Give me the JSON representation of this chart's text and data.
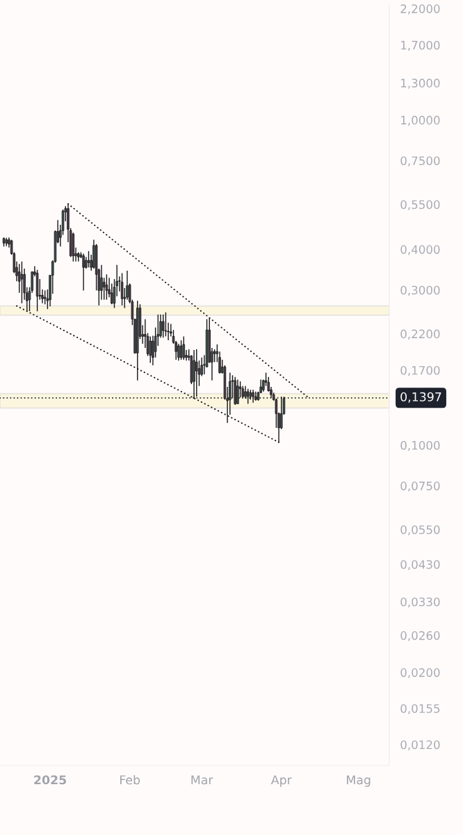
{
  "chart_data": {
    "type": "candlestick",
    "x": [
      "2024-12-14",
      "2024-12-15",
      "2024-12-16",
      "2024-12-17",
      "2024-12-18",
      "2024-12-19",
      "2024-12-20",
      "2024-12-21",
      "2024-12-22",
      "2024-12-23",
      "2024-12-24",
      "2024-12-25",
      "2024-12-26",
      "2024-12-27",
      "2024-12-28",
      "2024-12-29",
      "2024-12-30",
      "2024-12-31",
      "2025-01-01",
      "2025-01-02",
      "2025-01-03",
      "2025-01-04",
      "2025-01-05",
      "2025-01-06",
      "2025-01-07",
      "2025-01-08",
      "2025-01-09",
      "2025-01-10",
      "2025-01-11",
      "2025-01-12",
      "2025-01-13",
      "2025-01-14",
      "2025-01-15",
      "2025-01-16",
      "2025-01-17",
      "2025-01-18",
      "2025-01-19",
      "2025-01-20",
      "2025-01-21",
      "2025-01-22",
      "2025-01-23",
      "2025-01-24",
      "2025-01-25",
      "2025-01-26",
      "2025-01-27",
      "2025-01-28",
      "2025-01-29",
      "2025-01-30",
      "2025-01-31",
      "2025-02-01",
      "2025-02-02",
      "2025-02-03",
      "2025-02-04",
      "2025-02-05",
      "2025-02-06",
      "2025-02-07",
      "2025-02-08",
      "2025-02-09",
      "2025-02-10",
      "2025-02-11",
      "2025-02-12",
      "2025-02-13",
      "2025-02-14",
      "2025-02-15",
      "2025-02-16",
      "2025-02-17",
      "2025-02-18",
      "2025-02-19",
      "2025-02-20",
      "2025-02-21",
      "2025-02-22",
      "2025-02-23",
      "2025-02-24",
      "2025-02-25",
      "2025-02-26",
      "2025-02-27",
      "2025-02-28",
      "2025-03-01",
      "2025-03-02",
      "2025-03-03",
      "2025-03-04",
      "2025-03-05",
      "2025-03-06",
      "2025-03-07",
      "2025-03-08",
      "2025-03-09",
      "2025-03-10",
      "2025-03-11",
      "2025-03-12",
      "2025-03-13",
      "2025-03-14",
      "2025-03-15",
      "2025-03-16",
      "2025-03-17",
      "2025-03-18",
      "2025-03-19",
      "2025-03-20",
      "2025-03-21",
      "2025-03-22",
      "2025-03-23",
      "2025-03-24",
      "2025-03-25",
      "2025-03-26",
      "2025-03-27",
      "2025-03-28",
      "2025-03-29",
      "2025-03-30",
      "2025-03-31",
      "2025-04-01",
      "2025-04-02"
    ],
    "ohlc": [
      [
        0.432,
        0.435,
        0.408,
        0.418
      ],
      [
        0.418,
        0.434,
        0.409,
        0.428
      ],
      [
        0.428,
        0.435,
        0.405,
        0.415
      ],
      [
        0.425,
        0.428,
        0.385,
        0.388
      ],
      [
        0.388,
        0.392,
        0.338,
        0.341
      ],
      [
        0.352,
        0.367,
        0.319,
        0.332
      ],
      [
        0.341,
        0.361,
        0.294,
        0.319
      ],
      [
        0.324,
        0.367,
        0.273,
        0.335
      ],
      [
        0.335,
        0.349,
        0.28,
        0.294
      ],
      [
        0.294,
        0.306,
        0.258,
        0.278
      ],
      [
        0.28,
        0.306,
        0.258,
        0.297
      ],
      [
        0.299,
        0.342,
        0.294,
        0.341
      ],
      [
        0.341,
        0.355,
        0.33,
        0.335
      ],
      [
        0.338,
        0.346,
        0.258,
        0.287
      ],
      [
        0.287,
        0.324,
        0.28,
        0.289
      ],
      [
        0.289,
        0.301,
        0.273,
        0.282
      ],
      [
        0.282,
        0.299,
        0.271,
        0.285
      ],
      [
        0.282,
        0.301,
        0.262,
        0.278
      ],
      [
        0.28,
        0.333,
        0.267,
        0.333
      ],
      [
        0.333,
        0.37,
        0.292,
        0.367
      ],
      [
        0.367,
        0.457,
        0.364,
        0.454
      ],
      [
        0.454,
        0.492,
        0.418,
        0.421
      ],
      [
        0.435,
        0.476,
        0.408,
        0.457
      ],
      [
        0.457,
        0.53,
        0.443,
        0.525
      ],
      [
        0.521,
        0.543,
        0.488,
        0.534
      ],
      [
        0.534,
        0.552,
        0.421,
        0.461
      ],
      [
        0.457,
        0.465,
        0.379,
        0.382
      ],
      [
        0.446,
        0.45,
        0.367,
        0.382
      ],
      [
        0.382,
        0.405,
        0.367,
        0.388
      ],
      [
        0.388,
        0.392,
        0.367,
        0.379
      ],
      [
        0.379,
        0.392,
        0.376,
        0.385
      ],
      [
        0.382,
        0.388,
        0.299,
        0.352
      ],
      [
        0.352,
        0.379,
        0.349,
        0.37
      ],
      [
        0.37,
        0.395,
        0.352,
        0.364
      ],
      [
        0.37,
        0.385,
        0.344,
        0.352
      ],
      [
        0.352,
        0.428,
        0.349,
        0.411
      ],
      [
        0.411,
        0.415,
        0.299,
        0.335
      ],
      [
        0.346,
        0.349,
        0.269,
        0.299
      ],
      [
        0.299,
        0.358,
        0.28,
        0.327
      ],
      [
        0.317,
        0.327,
        0.28,
        0.306
      ],
      [
        0.311,
        0.335,
        0.28,
        0.299
      ],
      [
        0.301,
        0.327,
        0.285,
        0.292
      ],
      [
        0.294,
        0.314,
        0.271,
        0.273
      ],
      [
        0.273,
        0.324,
        0.264,
        0.306
      ],
      [
        0.309,
        0.358,
        0.287,
        0.319
      ],
      [
        0.319,
        0.33,
        0.297,
        0.32
      ],
      [
        0.317,
        0.338,
        0.269,
        0.282
      ],
      [
        0.282,
        0.304,
        0.264,
        0.285
      ],
      [
        0.285,
        0.344,
        0.28,
        0.309
      ],
      [
        0.311,
        0.314,
        0.273,
        0.276
      ],
      [
        0.276,
        0.28,
        0.234,
        0.244
      ],
      [
        0.244,
        0.244,
        0.191,
        0.192
      ],
      [
        0.192,
        0.278,
        0.158,
        0.264
      ],
      [
        0.264,
        0.271,
        0.212,
        0.216
      ],
      [
        0.216,
        0.234,
        0.205,
        0.219
      ],
      [
        0.219,
        0.244,
        0.199,
        0.216
      ],
      [
        0.216,
        0.221,
        0.188,
        0.191
      ],
      [
        0.189,
        0.216,
        0.179,
        0.209
      ],
      [
        0.209,
        0.217,
        0.176,
        0.186
      ],
      [
        0.194,
        0.23,
        0.186,
        0.216
      ],
      [
        0.216,
        0.252,
        0.202,
        0.219
      ],
      [
        0.217,
        0.252,
        0.214,
        0.24
      ],
      [
        0.24,
        0.252,
        0.214,
        0.225
      ],
      [
        0.225,
        0.256,
        0.216,
        0.224
      ],
      [
        0.224,
        0.238,
        0.21,
        0.223
      ],
      [
        0.223,
        0.236,
        0.216,
        0.221
      ],
      [
        0.216,
        0.226,
        0.205,
        0.207
      ],
      [
        0.207,
        0.209,
        0.183,
        0.194
      ],
      [
        0.186,
        0.205,
        0.182,
        0.202
      ],
      [
        0.202,
        0.21,
        0.183,
        0.186
      ],
      [
        0.186,
        0.216,
        0.183,
        0.204
      ],
      [
        0.189,
        0.196,
        0.182,
        0.186
      ],
      [
        0.186,
        0.197,
        0.182,
        0.188
      ],
      [
        0.188,
        0.189,
        0.154,
        0.156
      ],
      [
        0.157,
        0.196,
        0.139,
        0.182
      ],
      [
        0.18,
        0.197,
        0.141,
        0.169
      ],
      [
        0.172,
        0.182,
        0.152,
        0.165
      ],
      [
        0.165,
        0.186,
        0.163,
        0.176
      ],
      [
        0.176,
        0.189,
        0.165,
        0.177
      ],
      [
        0.174,
        0.244,
        0.174,
        0.226
      ],
      [
        0.226,
        0.246,
        0.179,
        0.18
      ],
      [
        0.18,
        0.199,
        0.158,
        0.194
      ],
      [
        0.194,
        0.197,
        0.18,
        0.191
      ],
      [
        0.191,
        0.204,
        0.18,
        0.194
      ],
      [
        0.186,
        0.194,
        0.166,
        0.167
      ],
      [
        0.167,
        0.183,
        0.166,
        0.174
      ],
      [
        0.174,
        0.176,
        0.138,
        0.139
      ],
      [
        0.139,
        0.151,
        0.117,
        0.137
      ],
      [
        0.138,
        0.167,
        0.124,
        0.157
      ],
      [
        0.157,
        0.164,
        0.14,
        0.158
      ],
      [
        0.158,
        0.162,
        0.133,
        0.134
      ],
      [
        0.134,
        0.159,
        0.134,
        0.152
      ],
      [
        0.151,
        0.157,
        0.14,
        0.149
      ],
      [
        0.149,
        0.152,
        0.14,
        0.141
      ],
      [
        0.141,
        0.152,
        0.139,
        0.146
      ],
      [
        0.146,
        0.149,
        0.134,
        0.141
      ],
      [
        0.141,
        0.148,
        0.138,
        0.145
      ],
      [
        0.145,
        0.148,
        0.135,
        0.141
      ],
      [
        0.141,
        0.146,
        0.137,
        0.138
      ],
      [
        0.138,
        0.146,
        0.137,
        0.145
      ],
      [
        0.145,
        0.159,
        0.145,
        0.151
      ],
      [
        0.148,
        0.159,
        0.146,
        0.158
      ],
      [
        0.158,
        0.167,
        0.152,
        0.156
      ],
      [
        0.156,
        0.162,
        0.146,
        0.147
      ],
      [
        0.148,
        0.151,
        0.14,
        0.143
      ],
      [
        0.143,
        0.145,
        0.137,
        0.138
      ],
      [
        0.138,
        0.139,
        0.113,
        0.125
      ],
      [
        0.125,
        0.126,
        0.102,
        0.113
      ],
      [
        0.113,
        0.141,
        0.112,
        0.125
      ],
      [
        0.125,
        0.141,
        0.124,
        0.139
      ]
    ],
    "colors": [
      "#4b3b49",
      "#3d514e",
      "#4b3b49",
      "#4b3b49",
      "#4b3b49",
      "#4b3b49",
      "#4b3b49",
      "#3d514e",
      "#4b3b49",
      "#4b3b49",
      "#3d514e",
      "#3d514e",
      "#4b3b49",
      "#4b3b49",
      "#3d514e",
      "#4b3b49",
      "#3d514e",
      "#4b3b49",
      "#3d514e",
      "#3d514e",
      "#3d514e",
      "#4b3b49",
      "#3d514e",
      "#3d514e",
      "#3d514e",
      "#4b3b49",
      "#4b3b49",
      "#4b3b49",
      "#3d514e",
      "#4b3b49",
      "#3d514e",
      "#4b3b49",
      "#3d514e",
      "#4b3b49",
      "#4b3b49",
      "#3d514e",
      "#4b3b49",
      "#4b3b49",
      "#3d514e",
      "#4b3b49",
      "#4b3b49",
      "#4b3b49",
      "#4b3b49",
      "#3d514e",
      "#3d514e",
      "#3d514e",
      "#4b3b49",
      "#3d514e",
      "#3d514e",
      "#4b3b49",
      "#4b3b49",
      "#4b3b49",
      "#3d514e",
      "#4b3b49",
      "#3d514e",
      "#4b3b49",
      "#4b3b49",
      "#3d514e",
      "#4b3b49",
      "#3d514e",
      "#3d514e",
      "#3d514e",
      "#4b3b49",
      "#4b3b49",
      "#4b3b49",
      "#4b3b49",
      "#4b3b49",
      "#4b3b49",
      "#3d514e",
      "#4b3b49",
      "#3d514e",
      "#4b3b49",
      "#3d514e",
      "#4b3b49",
      "#3d514e",
      "#4b3b49",
      "#4b3b49",
      "#3d514e",
      "#3d514e",
      "#3d514e",
      "#4b3b49",
      "#3d514e",
      "#4b3b49",
      "#3d514e",
      "#4b3b49",
      "#3d514e",
      "#4b3b49",
      "#4b3b49",
      "#3d514e",
      "#3d514e",
      "#4b3b49",
      "#3d514e",
      "#4b3b49",
      "#4b3b49",
      "#3d514e",
      "#4b3b49",
      "#3d514e",
      "#4b3b49",
      "#4b3b49",
      "#3d514e",
      "#3d514e",
      "#3d514e",
      "#4b3b49",
      "#4b3b49",
      "#4b3b49",
      "#4b3b49",
      "#4b3b49",
      "#4b3b49",
      "#3d514e",
      "#3d514e"
    ],
    "series": [
      {
        "type": "line",
        "x": [
          "2025-01-08",
          "2025-04-12"
        ],
        "values": [
          0.552,
          0.139
        ],
        "color": "#1a1a1a",
        "line_style": "dotted"
      },
      {
        "type": "line",
        "x": [
          "2024-12-19",
          "2025-03-31"
        ],
        "values": [
          0.268,
          0.102
        ],
        "color": "#1a1a1a",
        "line_style": "dotted"
      }
    ],
    "bands": [
      {
        "axis": "y",
        "from": 0.251,
        "to": 0.268,
        "color": "#fcf6df"
      },
      {
        "axis": "y",
        "from": 0.13,
        "to": 0.144,
        "color": "#fcf6df"
      }
    ],
    "ref_lines": [
      {
        "axis": "y",
        "value": 0.1397,
        "label": "0,1397",
        "color": "#1e222d",
        "line_style": "dotted"
      }
    ],
    "log": true,
    "xlim": [
      "2024-12-12T12:00",
      "2025-05-13"
    ],
    "xticks": [
      {
        "value": "2025-01-01",
        "label": "2025"
      },
      {
        "value": "2025-02-01",
        "label": "Feb"
      },
      {
        "value": "2025-03-01",
        "label": "Mar"
      },
      {
        "value": "2025-04-01",
        "label": "Apr"
      },
      {
        "value": "2025-05-01",
        "label": "Mag"
      }
    ],
    "ylim": [
      0.01035,
      2.27
    ],
    "yticks": [
      {
        "value": 2.2,
        "label": "2,2000"
      },
      {
        "value": 1.7,
        "label": "1,7000"
      },
      {
        "value": 1.3,
        "label": "1,3000"
      },
      {
        "value": 1.0,
        "label": "1,0000"
      },
      {
        "value": 0.75,
        "label": "0,7500"
      },
      {
        "value": 0.55,
        "label": "0,5500"
      },
      {
        "value": 0.4,
        "label": "0,4000"
      },
      {
        "value": 0.3,
        "label": "0,3000"
      },
      {
        "value": 0.22,
        "label": "0,2200"
      },
      {
        "value": 0.17,
        "label": "0,1700"
      },
      {
        "value": 0.1,
        "label": "0,1000"
      },
      {
        "value": 0.075,
        "label": "0,0750"
      },
      {
        "value": 0.055,
        "label": "0,0550"
      },
      {
        "value": 0.043,
        "label": "0,0430"
      },
      {
        "value": 0.033,
        "label": "0,0330"
      },
      {
        "value": 0.026,
        "label": "0,0260"
      },
      {
        "value": 0.02,
        "label": "0,0200"
      },
      {
        "value": 0.0155,
        "label": "0,0155"
      },
      {
        "value": 0.012,
        "label": "0,0120"
      }
    ]
  }
}
